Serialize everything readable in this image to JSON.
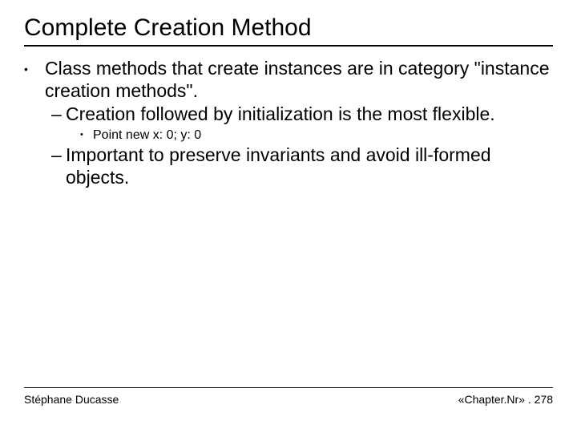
{
  "title": "Complete Creation Method",
  "bullet1": "Class methods that create instances are in category \"instance creation methods\".",
  "sub1": "Creation followed by initialization is the most flexible.",
  "subsub1": "Point new x: 0; y: 0",
  "sub2": "Important to preserve invariants and avoid ill-formed objects.",
  "footer_left": "Stéphane Ducasse",
  "footer_right": "«Chapter.Nr» . 278",
  "colors": {
    "text": "#000000",
    "bg": "#ffffff",
    "rule": "#000000"
  },
  "fonts": {
    "family": "Comic Sans MS",
    "title_size": 30,
    "body_size": 23,
    "sub_size": 16,
    "footer_size": 14
  }
}
